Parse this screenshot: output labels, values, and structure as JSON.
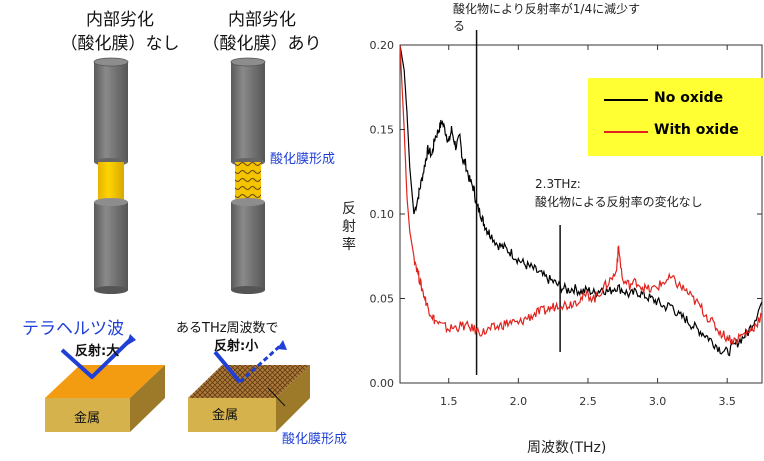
{
  "left_panel": {
    "no_oxide_heading": [
      "内部劣化",
      "（酸化膜）なし"
    ],
    "with_oxide_heading": [
      "内部劣化",
      "（酸化膜）あり"
    ],
    "oxide_film_label_top": "酸化膜形成",
    "terahertz_label": "テラヘルツ波",
    "some_freq_label": "あるTHz周波数で",
    "reflection_high": "反射:大",
    "reflection_low": "反射:小",
    "metal_label_1": "金属",
    "metal_label_2": "金属",
    "oxide_film_label_bottom": "酸化膜形成",
    "colors": {
      "gray": "#707070",
      "gold": "#f5c400",
      "blue": "#1f3fd6",
      "metal_top": "#f39c12",
      "metal_side": "#c9a24a"
    }
  },
  "chart_annotations": {
    "top_note_line1": "酸化物により反射率が1/4に減少す",
    "top_note_line2": "る",
    "mid_note_line1": "2.3THz:",
    "mid_note_line2": "酸化物による反射率の変化なし"
  },
  "chart_data": {
    "type": "line",
    "xlabel": "周波数(THz)",
    "ylabel": "反射率",
    "xlim": [
      1.15,
      3.75
    ],
    "ylim": [
      0,
      0.2
    ],
    "x_ticks": [
      "1.5",
      "2.0",
      "2.5",
      "3.0",
      "3.5"
    ],
    "x_tick_values": [
      1.5,
      2.0,
      2.5,
      3.0,
      3.5
    ],
    "y_ticks": [
      "0.00",
      "0.05",
      "0.10",
      "0.15",
      "0.20"
    ],
    "y_tick_values": [
      0,
      0.05,
      0.1,
      0.15,
      0.2
    ],
    "vertical_markers": [
      1.7,
      2.3
    ],
    "legend": {
      "position": "top-right",
      "background": "#ffff33"
    },
    "series": [
      {
        "name": "No oxide",
        "color": "#000000",
        "x": [
          1.15,
          1.18,
          1.2,
          1.22,
          1.25,
          1.28,
          1.3,
          1.33,
          1.35,
          1.38,
          1.4,
          1.43,
          1.45,
          1.48,
          1.5,
          1.52,
          1.55,
          1.58,
          1.6,
          1.62,
          1.65,
          1.68,
          1.7,
          1.73,
          1.75,
          1.78,
          1.8,
          1.85,
          1.9,
          1.95,
          2.0,
          2.05,
          2.1,
          2.15,
          2.2,
          2.25,
          2.3,
          2.35,
          2.4,
          2.45,
          2.5,
          2.55,
          2.6,
          2.65,
          2.7,
          2.75,
          2.8,
          2.85,
          2.9,
          2.95,
          3.0,
          3.05,
          3.1,
          3.15,
          3.2,
          3.25,
          3.3,
          3.35,
          3.4,
          3.45,
          3.5,
          3.55,
          3.6,
          3.65,
          3.7,
          3.75
        ],
        "values": [
          0.2,
          0.185,
          0.16,
          0.128,
          0.1,
          0.11,
          0.118,
          0.13,
          0.138,
          0.135,
          0.145,
          0.15,
          0.155,
          0.148,
          0.142,
          0.15,
          0.14,
          0.145,
          0.132,
          0.13,
          0.12,
          0.115,
          0.105,
          0.1,
          0.095,
          0.09,
          0.088,
          0.082,
          0.08,
          0.077,
          0.073,
          0.07,
          0.068,
          0.065,
          0.062,
          0.06,
          0.057,
          0.055,
          0.056,
          0.054,
          0.055,
          0.053,
          0.056,
          0.054,
          0.057,
          0.055,
          0.052,
          0.054,
          0.052,
          0.05,
          0.048,
          0.045,
          0.046,
          0.04,
          0.038,
          0.034,
          0.031,
          0.028,
          0.024,
          0.02,
          0.018,
          0.022,
          0.026,
          0.03,
          0.038,
          0.048
        ]
      },
      {
        "name": "With oxide",
        "color": "#e0231c",
        "x": [
          1.15,
          1.18,
          1.2,
          1.22,
          1.25,
          1.28,
          1.3,
          1.33,
          1.35,
          1.38,
          1.4,
          1.45,
          1.5,
          1.55,
          1.6,
          1.65,
          1.7,
          1.75,
          1.8,
          1.85,
          1.9,
          1.95,
          2.0,
          2.05,
          2.1,
          2.15,
          2.2,
          2.25,
          2.3,
          2.35,
          2.4,
          2.45,
          2.5,
          2.55,
          2.6,
          2.65,
          2.7,
          2.72,
          2.75,
          2.8,
          2.85,
          2.9,
          2.95,
          3.0,
          3.05,
          3.1,
          3.15,
          3.2,
          3.25,
          3.3,
          3.35,
          3.4,
          3.45,
          3.5,
          3.55,
          3.6,
          3.65,
          3.7,
          3.75
        ],
        "values": [
          0.2,
          0.15,
          0.11,
          0.09,
          0.075,
          0.065,
          0.058,
          0.05,
          0.045,
          0.04,
          0.037,
          0.034,
          0.032,
          0.033,
          0.034,
          0.033,
          0.031,
          0.03,
          0.032,
          0.033,
          0.035,
          0.036,
          0.035,
          0.038,
          0.04,
          0.042,
          0.043,
          0.045,
          0.047,
          0.046,
          0.048,
          0.05,
          0.052,
          0.05,
          0.055,
          0.06,
          0.065,
          0.08,
          0.06,
          0.058,
          0.06,
          0.056,
          0.055,
          0.057,
          0.06,
          0.062,
          0.058,
          0.055,
          0.05,
          0.046,
          0.04,
          0.035,
          0.03,
          0.027,
          0.025,
          0.028,
          0.03,
          0.034,
          0.04
        ]
      }
    ]
  }
}
